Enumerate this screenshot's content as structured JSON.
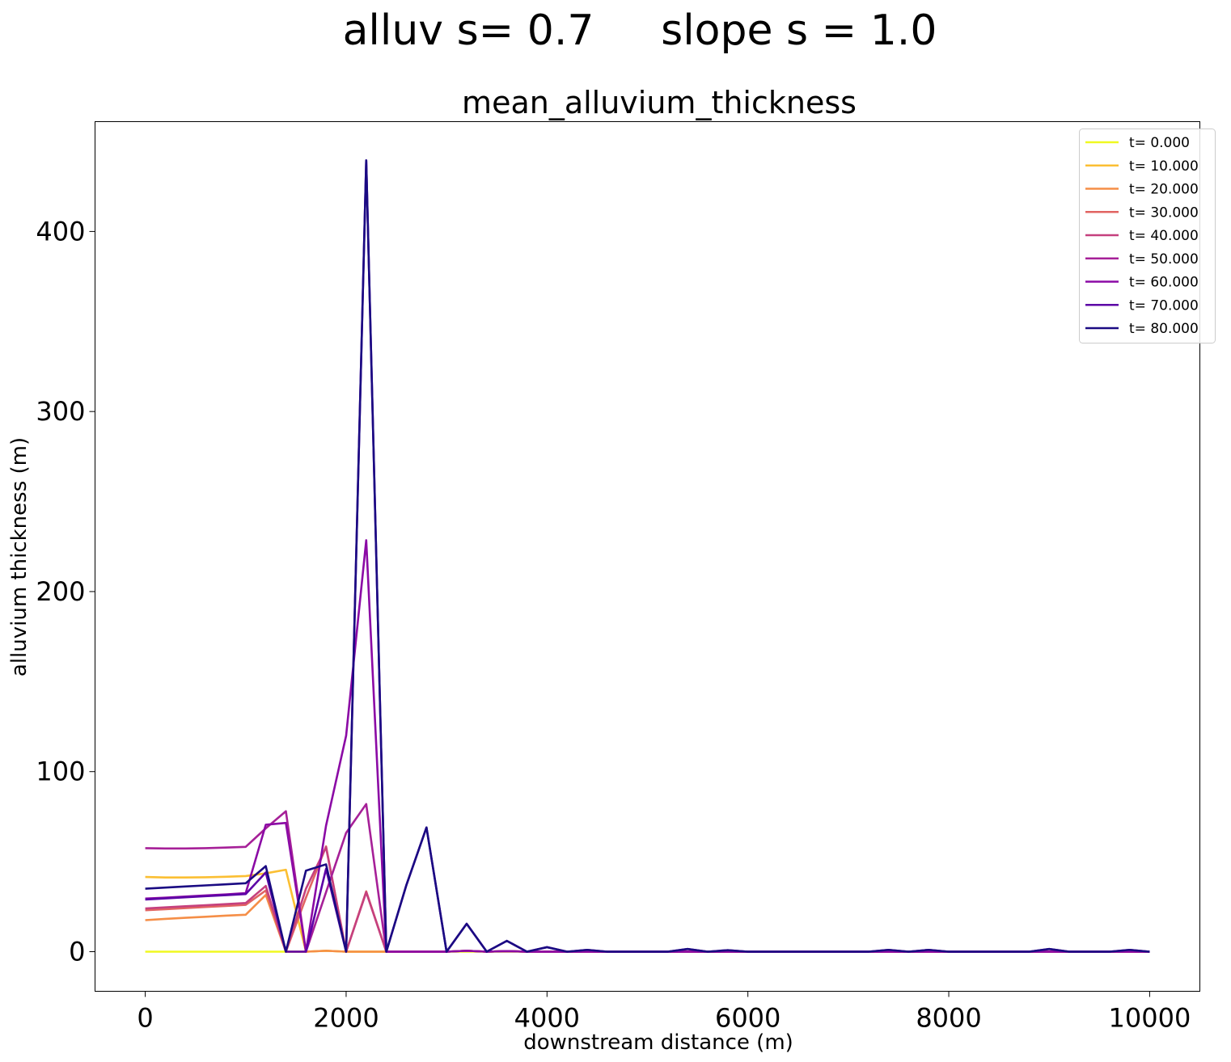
{
  "figure": {
    "suptitle": "alluv s= 0.7     slope s = 1.0"
  },
  "chart_data": {
    "type": "line",
    "title": "mean_alluvium_thickness",
    "xlabel": "downstream distance (m)",
    "ylabel": "alluvium thickness (m)",
    "xlim": [
      -500,
      10500
    ],
    "ylim": [
      -22,
      461
    ],
    "xticks": [
      0,
      2000,
      4000,
      6000,
      8000,
      10000
    ],
    "xtick_labels": [
      "0",
      "2000",
      "4000",
      "6000",
      "8000",
      "10000"
    ],
    "yticks": [
      0,
      100,
      200,
      300,
      400
    ],
    "ytick_labels": [
      "0",
      "100",
      "200",
      "300",
      "400"
    ],
    "grid": false,
    "legend_position": "top-right",
    "x": [
      0,
      200,
      400,
      600,
      800,
      1000,
      1200,
      1400,
      1600,
      1800,
      2000,
      2200,
      2400,
      2600,
      2800,
      3000,
      3200,
      3400,
      3600,
      3800,
      4000,
      4200,
      4400,
      4600,
      4800,
      5000,
      5200,
      5400,
      5600,
      5800,
      6000,
      6200,
      6400,
      6600,
      6800,
      7000,
      7200,
      7400,
      7600,
      7800,
      8000,
      8200,
      8400,
      8600,
      8800,
      9000,
      9200,
      9400,
      9600,
      9800,
      10000
    ],
    "series": [
      {
        "name": "t= 0.000",
        "color": "#f0f921",
        "values": [
          0,
          0,
          0,
          0,
          0,
          0,
          0,
          0,
          0,
          0.5,
          0,
          0,
          0,
          0,
          0,
          0,
          0,
          0,
          0,
          0,
          0,
          0,
          0,
          0,
          0,
          0,
          0,
          0,
          0,
          0,
          0,
          0,
          0,
          0,
          0,
          0,
          0,
          0,
          0,
          0,
          0,
          0,
          0,
          0,
          0,
          0,
          0,
          0,
          0,
          0,
          0
        ]
      },
      {
        "name": "t= 10.000",
        "color": "#fbbf33",
        "values": [
          41.5,
          41.2,
          41.2,
          41.3,
          41.6,
          42,
          43.5,
          45.5,
          0,
          0.5,
          0,
          0,
          0,
          0,
          0,
          0,
          0.5,
          0,
          0.3,
          0,
          0,
          0,
          0,
          0,
          0,
          0,
          0,
          0,
          0,
          0,
          0,
          0,
          0,
          0,
          0,
          0,
          0,
          0,
          0,
          0,
          0,
          0,
          0,
          0,
          0,
          0,
          0,
          0,
          0,
          0,
          0
        ]
      },
      {
        "name": "t= 20.000",
        "color": "#f58e47",
        "values": [
          17.5,
          18.2,
          18.8,
          19.4,
          20,
          20.5,
          31.5,
          0,
          0,
          0.5,
          0,
          0,
          0,
          0,
          0,
          0,
          0.5,
          0,
          0.3,
          0,
          0,
          0,
          0,
          0,
          0,
          0,
          0,
          0,
          0,
          0,
          0,
          0,
          0,
          0,
          0,
          0,
          0,
          0,
          0,
          0,
          0,
          0,
          0,
          0,
          0,
          0,
          0,
          0,
          0,
          0,
          0
        ]
      },
      {
        "name": "t= 30.000",
        "color": "#e16462",
        "values": [
          23,
          23.6,
          24.2,
          24.8,
          25.4,
          26,
          34,
          0,
          30,
          58.5,
          0,
          33.5,
          0,
          0,
          0,
          0,
          0.5,
          0,
          0.3,
          0,
          0,
          0,
          0,
          0,
          0,
          0,
          0,
          0,
          0,
          0,
          0,
          0,
          0,
          0,
          0,
          0,
          0,
          0,
          0,
          0,
          0,
          0,
          0,
          0,
          0,
          0,
          0,
          0,
          0,
          0,
          0
        ]
      },
      {
        "name": "t= 40.000",
        "color": "#c5407e",
        "values": [
          24,
          24.6,
          25.2,
          25.8,
          26.4,
          27,
          36.5,
          0,
          35,
          58,
          0,
          33,
          0,
          0,
          0,
          0,
          0.5,
          0,
          0.3,
          0,
          0,
          0,
          0,
          0,
          0,
          0,
          0,
          0,
          0,
          0,
          0,
          0,
          0,
          0,
          0,
          0,
          0,
          0,
          0,
          0,
          0,
          0,
          0,
          0,
          0,
          0,
          0,
          0,
          0,
          0,
          0
        ]
      },
      {
        "name": "t= 50.000",
        "color": "#a62098",
        "values": [
          57.5,
          57.3,
          57.3,
          57.5,
          57.8,
          58.2,
          68.5,
          78,
          0,
          33,
          66,
          82,
          0,
          0,
          0,
          0,
          0.5,
          0,
          0.3,
          0,
          0,
          0,
          0,
          0,
          0,
          0,
          0,
          0,
          0,
          0,
          0,
          0,
          0,
          0,
          0,
          0,
          0,
          0,
          0,
          0,
          0,
          0,
          0,
          0,
          0,
          0,
          0,
          0,
          0,
          0,
          0
        ]
      },
      {
        "name": "t= 60.000",
        "color": "#8b0aa5",
        "values": [
          29.5,
          30,
          30.6,
          31.2,
          31.8,
          32.5,
          70.5,
          71.5,
          0,
          70,
          120,
          228.5,
          0,
          0,
          0,
          0,
          0.5,
          0,
          0.3,
          0,
          0,
          0,
          0,
          0,
          0,
          0,
          0,
          0,
          0,
          0,
          0,
          0,
          0,
          0,
          0,
          0,
          0,
          0,
          0,
          0,
          0,
          0,
          0,
          0,
          0,
          0,
          0,
          0,
          0,
          0,
          0
        ]
      },
      {
        "name": "t= 70.000",
        "color": "#5c01a6",
        "values": [
          29,
          29.6,
          30.2,
          30.8,
          31.4,
          32,
          44,
          0,
          0,
          46,
          0,
          439.5,
          0,
          37,
          69,
          0,
          15.5,
          0,
          6,
          0,
          2.5,
          0,
          1,
          0,
          0,
          0,
          0,
          1.5,
          0,
          0.8,
          0,
          0,
          0,
          0,
          0,
          0,
          0,
          1,
          0,
          1,
          0,
          0,
          0,
          0,
          0,
          1.5,
          0,
          0,
          0,
          1,
          0
        ]
      },
      {
        "name": "t= 80.000",
        "color": "#1a0a82",
        "values": [
          35,
          35.6,
          36.2,
          36.8,
          37.4,
          38,
          47.5,
          0,
          45,
          48.5,
          0,
          439.5,
          0,
          37,
          69,
          0,
          15.5,
          0,
          6,
          0,
          2.5,
          0,
          1,
          0,
          0,
          0,
          0,
          1.5,
          0,
          0.8,
          0,
          0,
          0,
          0,
          0,
          0,
          0,
          1,
          0,
          1,
          0,
          0,
          0,
          0,
          0,
          1.5,
          0,
          0,
          0,
          1,
          0
        ]
      }
    ]
  }
}
